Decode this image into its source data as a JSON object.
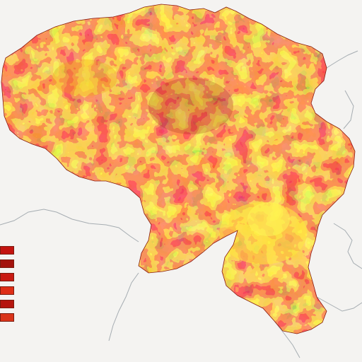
{
  "map": {
    "title": "",
    "subtitle": "",
    "region_labels_right": [],
    "colors": {
      "background": "#f4f3f1",
      "high": "#fff231",
      "mid_high": "#f8a21c",
      "mid": "#ea4a16",
      "low": "#c21c12",
      "lowest": "#7d0f0a",
      "boundary": "#9aa1a6"
    }
  },
  "legend": {
    "title": "",
    "items": [
      {
        "label": "",
        "color": "#c3130f"
      },
      {
        "label": "",
        "color": "#a3120c"
      },
      {
        "label": "",
        "color": "#c81a13"
      },
      {
        "label": "",
        "color": "#de2e17"
      },
      {
        "label": "",
        "color": "#b5150e"
      },
      {
        "label": "",
        "color": "#d9341a"
      }
    ]
  },
  "footer": {
    "items": []
  }
}
